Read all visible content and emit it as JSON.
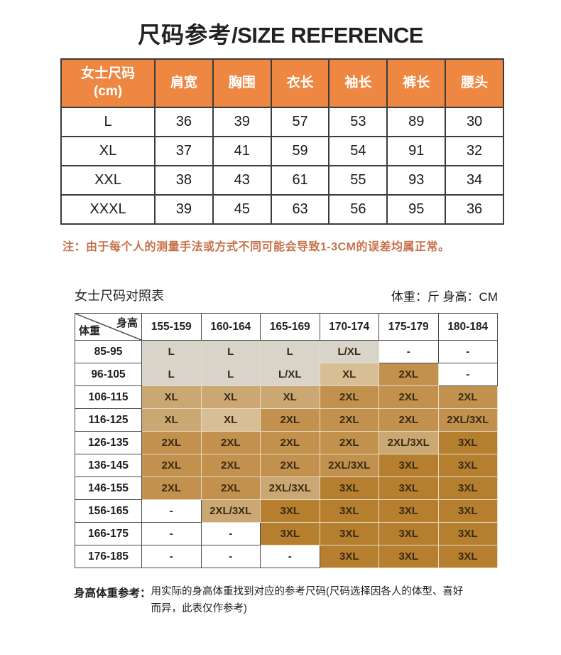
{
  "title": {
    "cn": "尺码参考",
    "en": "/SIZE REFERENCE"
  },
  "colors": {
    "header_orange": "#ed8742",
    "note_orange": "#c7714a",
    "table_border_dark": "#3c3c3c",
    "matrix_border_light": "#e7dcc2"
  },
  "size_table": {
    "first_col_header": [
      "女士尺码",
      "(cm)"
    ],
    "measure_headers": [
      "肩宽",
      "胸围",
      "衣长",
      "袖长",
      "裤长",
      "腰头"
    ],
    "rows": [
      {
        "size": "L",
        "values": [
          "36",
          "39",
          "57",
          "53",
          "89",
          "30"
        ]
      },
      {
        "size": "XL",
        "values": [
          "37",
          "41",
          "59",
          "54",
          "91",
          "32"
        ]
      },
      {
        "size": "XXL",
        "values": [
          "38",
          "43",
          "61",
          "55",
          "93",
          "34"
        ]
      },
      {
        "size": "XXXL",
        "values": [
          "39",
          "45",
          "63",
          "56",
          "95",
          "36"
        ]
      }
    ]
  },
  "note": "注：由于每个人的测量手法或方式不同可能会导致1-3CM的误差均属正常。",
  "comparison": {
    "title": "女士尺码对照表",
    "units": "体重：斤 身高：CM",
    "corner_top": "身高",
    "corner_bottom": "体重",
    "height_columns": [
      "155-159",
      "160-164",
      "165-169",
      "170-174",
      "175-179",
      "180-184"
    ],
    "shade_colors": {
      "w": "#ffffff",
      "s0": "#d9d4ca",
      "s1": "#d8be94",
      "s2": "#cba873",
      "s3": "#c2914d",
      "s4": "#b67f2f"
    },
    "rows": [
      {
        "weight": "85-95",
        "cells": [
          {
            "v": "L",
            "s": "s0"
          },
          {
            "v": "L",
            "s": "s0"
          },
          {
            "v": "L",
            "s": "s0"
          },
          {
            "v": "L/XL",
            "s": "s0"
          },
          {
            "v": "-",
            "s": "w"
          },
          {
            "v": "-",
            "s": "w"
          }
        ]
      },
      {
        "weight": "96-105",
        "cells": [
          {
            "v": "L",
            "s": "s0"
          },
          {
            "v": "L",
            "s": "s0"
          },
          {
            "v": "L/XL",
            "s": "s0"
          },
          {
            "v": "XL",
            "s": "s1"
          },
          {
            "v": "2XL",
            "s": "s3"
          },
          {
            "v": "-",
            "s": "w"
          }
        ]
      },
      {
        "weight": "106-115",
        "cells": [
          {
            "v": "XL",
            "s": "s2"
          },
          {
            "v": "XL",
            "s": "s2"
          },
          {
            "v": "XL",
            "s": "s2"
          },
          {
            "v": "2XL",
            "s": "s3"
          },
          {
            "v": "2XL",
            "s": "s3"
          },
          {
            "v": "2XL",
            "s": "s3"
          }
        ]
      },
      {
        "weight": "116-125",
        "cells": [
          {
            "v": "XL",
            "s": "s2"
          },
          {
            "v": "XL",
            "s": "s1"
          },
          {
            "v": "2XL",
            "s": "s3"
          },
          {
            "v": "2XL",
            "s": "s3"
          },
          {
            "v": "2XL",
            "s": "s3"
          },
          {
            "v": "2XL/3XL",
            "s": "s3"
          }
        ]
      },
      {
        "weight": "126-135",
        "cells": [
          {
            "v": "2XL",
            "s": "s3"
          },
          {
            "v": "2XL",
            "s": "s3"
          },
          {
            "v": "2XL",
            "s": "s3"
          },
          {
            "v": "2XL",
            "s": "s3"
          },
          {
            "v": "2XL/3XL",
            "s": "s2"
          },
          {
            "v": "3XL",
            "s": "s4"
          }
        ]
      },
      {
        "weight": "136-145",
        "cells": [
          {
            "v": "2XL",
            "s": "s3"
          },
          {
            "v": "2XL",
            "s": "s3"
          },
          {
            "v": "2XL",
            "s": "s3"
          },
          {
            "v": "2XL/3XL",
            "s": "s3"
          },
          {
            "v": "3XL",
            "s": "s4"
          },
          {
            "v": "3XL",
            "s": "s4"
          }
        ]
      },
      {
        "weight": "146-155",
        "cells": [
          {
            "v": "2XL",
            "s": "s3"
          },
          {
            "v": "2XL",
            "s": "s3"
          },
          {
            "v": "2XL/3XL",
            "s": "s2"
          },
          {
            "v": "3XL",
            "s": "s4"
          },
          {
            "v": "3XL",
            "s": "s4"
          },
          {
            "v": "3XL",
            "s": "s4"
          }
        ]
      },
      {
        "weight": "156-165",
        "cells": [
          {
            "v": "-",
            "s": "w"
          },
          {
            "v": "2XL/3XL",
            "s": "s2"
          },
          {
            "v": "3XL",
            "s": "s4"
          },
          {
            "v": "3XL",
            "s": "s4"
          },
          {
            "v": "3XL",
            "s": "s4"
          },
          {
            "v": "3XL",
            "s": "s4"
          }
        ]
      },
      {
        "weight": "166-175",
        "cells": [
          {
            "v": "-",
            "s": "w"
          },
          {
            "v": "-",
            "s": "w"
          },
          {
            "v": "3XL",
            "s": "s4"
          },
          {
            "v": "3XL",
            "s": "s4"
          },
          {
            "v": "3XL",
            "s": "s4"
          },
          {
            "v": "3XL",
            "s": "s4"
          }
        ]
      },
      {
        "weight": "176-185",
        "cells": [
          {
            "v": "-",
            "s": "w"
          },
          {
            "v": "-",
            "s": "w"
          },
          {
            "v": "-",
            "s": "w"
          },
          {
            "v": "3XL",
            "s": "s4"
          },
          {
            "v": "3XL",
            "s": "s4"
          },
          {
            "v": "3XL",
            "s": "s4"
          }
        ]
      }
    ]
  },
  "footer_note": {
    "label": "身高体重参考：",
    "text": "用实际的身高体重找到对应的参考尺码(尺码选择因各人的体型、喜好而异，此表仅作参考)"
  }
}
